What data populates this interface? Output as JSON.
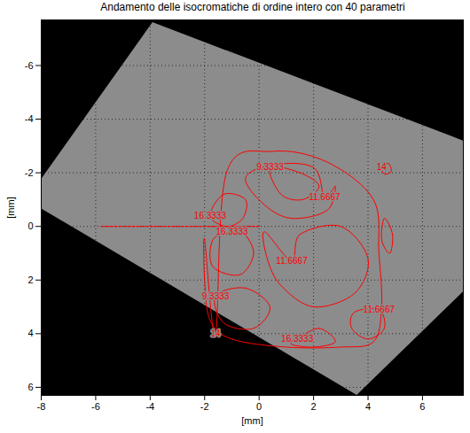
{
  "chart_data": {
    "type": "contour",
    "title": "Andamento delle isocromatiche di ordine intero con 40 parametri",
    "xlabel": "[mm]",
    "ylabel": "[mm]",
    "xlim": [
      -8,
      7.5
    ],
    "ylim": [
      6.3,
      -7.7
    ],
    "xticks": [
      -8,
      -6,
      -4,
      -2,
      0,
      2,
      4,
      6
    ],
    "yticks": [
      -6,
      -4,
      -2,
      0,
      2,
      4,
      6
    ],
    "grid": true,
    "color": "#ff0000",
    "image_region": {
      "x": [
        -3.9,
        11.6,
        3.6,
        -8.53
      ],
      "y": [
        -7.6,
        -1.6,
        6.3,
        -0.98
      ]
    },
    "series": [
      {
        "level": 14,
        "x": [
          -1.6,
          -1.2,
          0.5,
          2.5,
          4.2,
          4.4,
          4.5,
          4.2,
          3.0,
          1.0,
          -1.0,
          -1.8,
          -2.0,
          -2.0
        ],
        "y": [
          4.0,
          -2.0,
          -2.8,
          -2.4,
          -1.0,
          1.0,
          3.0,
          4.3,
          4.5,
          4.5,
          4.2,
          3.5,
          2.0,
          0.5
        ]
      },
      {
        "level": 16.3333,
        "x": [
          -1.8,
          -1.3,
          -0.5,
          -0.6,
          -1.2
        ],
        "y": [
          -0.4,
          -1.2,
          -1.0,
          -0.3,
          0.0
        ]
      },
      {
        "level": 11.6667,
        "x": [
          2.4,
          2.8,
          2.5,
          1.2,
          0.2,
          -0.5,
          0.5,
          2.0
        ],
        "y": [
          -1.1,
          -1.5,
          -0.6,
          -0.3,
          -0.8,
          -1.8,
          -2.3,
          -2.2
        ]
      },
      {
        "level": 9.3333,
        "x": [
          0.4,
          1.5,
          2.2,
          1.6,
          0.8
        ],
        "y": [
          -2.2,
          -2.0,
          -1.5,
          -1.0,
          -1.2
        ]
      },
      {
        "level": 16.3333,
        "x": [
          -1.0,
          -0.6,
          -0.2,
          -0.7,
          -1.7,
          -1.7
        ],
        "y": [
          0.2,
          0.2,
          1.0,
          1.8,
          1.5,
          0.5
        ]
      },
      {
        "level": 11.6667,
        "x": [
          1.2,
          1.5,
          3.0,
          4.0,
          3.5,
          2.0,
          0.8,
          0.3,
          0.2
        ],
        "y": [
          1.3,
          0.3,
          0.0,
          1.2,
          2.5,
          3.0,
          2.2,
          1.2,
          0.2
        ]
      },
      {
        "level": 9.3333,
        "x": [
          -1.6,
          -0.5,
          0.4,
          -0.2,
          -1.3
        ],
        "y": [
          2.6,
          2.3,
          3.0,
          3.8,
          3.6
        ]
      },
      {
        "level": 11.6667,
        "x": [
          4.4,
          4.6,
          4.0,
          3.4,
          3.5
        ],
        "y": [
          3.1,
          3.8,
          4.2,
          3.8,
          3.2
        ]
      },
      {
        "level": 16.3333,
        "x": [
          1.4,
          2.2,
          2.8,
          2.0,
          1.2
        ],
        "y": [
          4.2,
          3.8,
          4.3,
          4.5,
          4.4
        ]
      },
      {
        "level": 14,
        "x": [
          4.5,
          4.75,
          4.85,
          4.6
        ],
        "y": [
          -2.2,
          -2.35,
          -2.05,
          -1.95
        ]
      },
      {
        "x": [
          4.6,
          4.9,
          4.8,
          4.5
        ],
        "y": [
          -0.3,
          0.3,
          1.0,
          0.5
        ]
      },
      {
        "x": [
          -5.8,
          0
        ],
        "y": [
          0,
          0
        ],
        "line_style": "dashed"
      }
    ]
  }
}
